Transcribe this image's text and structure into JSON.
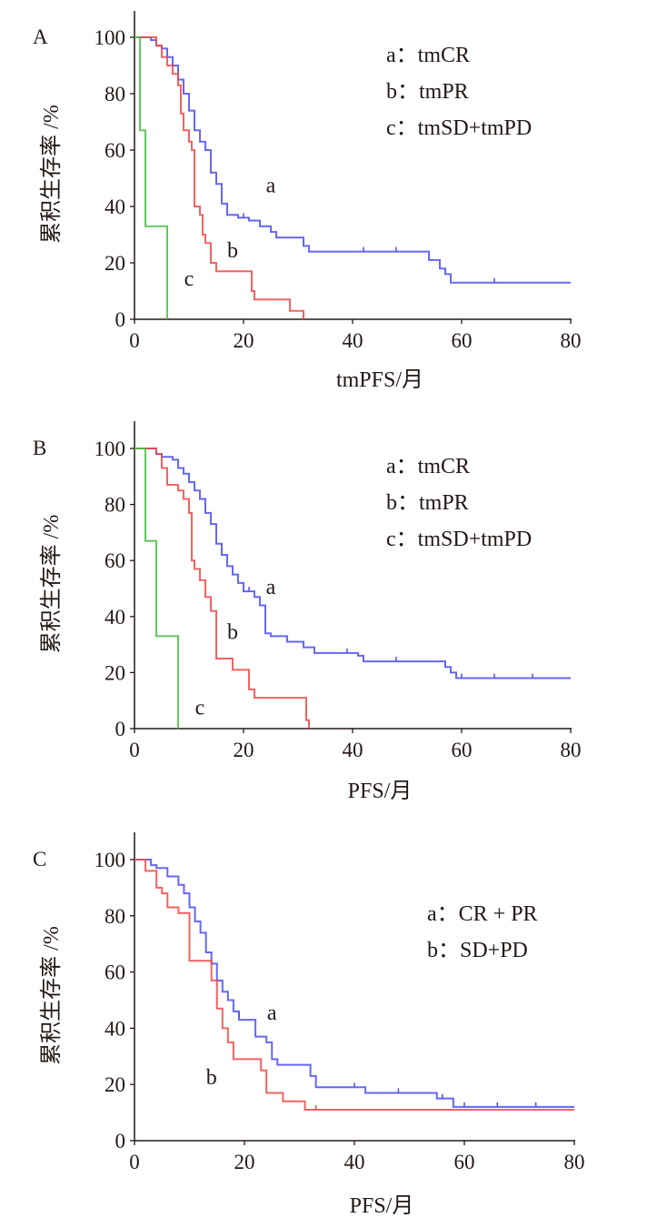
{
  "chart_data": [
    {
      "type": "line",
      "step": true,
      "panel_label": "A",
      "xlabel": "tmPFS/月",
      "ylabel": "累积生存率 /%",
      "xlim": [
        0,
        80
      ],
      "ylim": [
        0,
        100
      ],
      "xticks": [
        0,
        20,
        40,
        60,
        80
      ],
      "yticks": [
        0,
        20,
        40,
        60,
        80,
        100
      ],
      "grid": false,
      "legend_position": "top-right",
      "legend": [
        "a：tmCR",
        "b：tmPR",
        "c：tmSD+tmPD"
      ],
      "series": [
        {
          "name": "a",
          "color": "#4a4ef0",
          "points": [
            [
              0,
              100
            ],
            [
              3,
              99
            ],
            [
              4,
              97
            ],
            [
              5,
              96
            ],
            [
              6,
              93
            ],
            [
              7,
              90
            ],
            [
              8,
              85
            ],
            [
              9,
              80
            ],
            [
              10,
              74
            ],
            [
              11,
              67
            ],
            [
              12,
              63
            ],
            [
              13,
              60
            ],
            [
              14,
              52
            ],
            [
              15,
              48
            ],
            [
              16,
              41
            ],
            [
              17,
              37
            ],
            [
              19,
              36
            ],
            [
              21,
              35
            ],
            [
              23,
              33
            ],
            [
              25,
              31
            ],
            [
              26,
              29
            ],
            [
              31,
              26
            ],
            [
              32,
              24
            ],
            [
              53,
              24
            ],
            [
              54,
              21
            ],
            [
              56,
              18
            ],
            [
              57,
              16
            ],
            [
              58,
              13
            ],
            [
              80,
              13
            ]
          ],
          "censored": [
            [
              20,
              36
            ],
            [
              42,
              24
            ],
            [
              48,
              24
            ],
            [
              66,
              13
            ]
          ]
        },
        {
          "name": "b",
          "color": "#f04848",
          "points": [
            [
              0,
              100
            ],
            [
              4,
              97
            ],
            [
              5,
              93
            ],
            [
              6,
              90
            ],
            [
              7,
              87
            ],
            [
              8,
              83
            ],
            [
              8.5,
              73
            ],
            [
              9,
              67
            ],
            [
              10,
              63
            ],
            [
              10.5,
              60
            ],
            [
              11,
              40
            ],
            [
              12,
              37
            ],
            [
              12.5,
              30
            ],
            [
              13,
              27
            ],
            [
              14,
              20
            ],
            [
              15,
              17
            ],
            [
              21,
              17
            ],
            [
              21.5,
              10
            ],
            [
              22,
              7
            ],
            [
              28,
              7
            ],
            [
              28.5,
              3
            ],
            [
              31,
              0
            ]
          ],
          "censored": []
        },
        {
          "name": "c",
          "color": "#44c044",
          "points": [
            [
              0,
              100
            ],
            [
              1,
              67
            ],
            [
              2,
              33
            ],
            [
              6,
              0
            ]
          ],
          "censored": []
        }
      ],
      "curve_labels": [
        {
          "text": "a",
          "x": 25,
          "y": 45
        },
        {
          "text": "b",
          "x": 18,
          "y": 22
        },
        {
          "text": "c",
          "x": 10,
          "y": 12
        }
      ]
    },
    {
      "type": "line",
      "step": true,
      "panel_label": "B",
      "xlabel": "PFS/月",
      "ylabel": "累积生存率 /%",
      "xlim": [
        0,
        80
      ],
      "ylim": [
        0,
        100
      ],
      "xticks": [
        0,
        20,
        40,
        60,
        80
      ],
      "yticks": [
        0,
        20,
        40,
        60,
        80,
        100
      ],
      "grid": false,
      "legend_position": "top-right",
      "legend": [
        "a：tmCR",
        "b：tmPR",
        "c：tmSD+tmPD"
      ],
      "series": [
        {
          "name": "a",
          "color": "#4a4ef0",
          "points": [
            [
              0,
              100
            ],
            [
              4,
              98
            ],
            [
              5,
              97
            ],
            [
              7,
              96
            ],
            [
              8,
              93
            ],
            [
              9,
              91
            ],
            [
              10,
              88
            ],
            [
              11,
              85
            ],
            [
              12,
              82
            ],
            [
              13,
              77
            ],
            [
              14,
              73
            ],
            [
              15,
              66
            ],
            [
              16,
              62
            ],
            [
              17,
              58
            ],
            [
              18,
              55
            ],
            [
              19,
              52
            ],
            [
              20,
              49
            ],
            [
              22,
              47
            ],
            [
              23,
              44
            ],
            [
              24,
              34
            ],
            [
              25,
              33
            ],
            [
              28,
              31
            ],
            [
              31,
              29
            ],
            [
              33,
              27
            ],
            [
              41,
              26
            ],
            [
              42,
              24
            ],
            [
              56,
              24
            ],
            [
              57,
              22
            ],
            [
              58,
              20
            ],
            [
              59,
              18
            ],
            [
              80,
              18
            ]
          ],
          "censored": [
            [
              21,
              49
            ],
            [
              39,
              27
            ],
            [
              48,
              24
            ],
            [
              60,
              18
            ],
            [
              66,
              18
            ],
            [
              73,
              18
            ]
          ]
        },
        {
          "name": "b",
          "color": "#f04848",
          "points": [
            [
              0,
              100
            ],
            [
              4,
              98
            ],
            [
              5,
              93
            ],
            [
              6,
              87
            ],
            [
              8,
              85
            ],
            [
              9,
              82
            ],
            [
              10,
              77
            ],
            [
              10.5,
              60
            ],
            [
              11,
              57
            ],
            [
              12,
              53
            ],
            [
              13,
              47
            ],
            [
              14,
              42
            ],
            [
              15,
              25
            ],
            [
              18,
              21
            ],
            [
              21,
              14
            ],
            [
              22,
              11
            ],
            [
              31,
              11
            ],
            [
              31.5,
              3
            ],
            [
              32,
              0
            ]
          ],
          "censored": []
        },
        {
          "name": "c",
          "color": "#44c044",
          "points": [
            [
              0,
              100
            ],
            [
              2,
              67
            ],
            [
              4,
              33
            ],
            [
              8,
              0
            ]
          ],
          "censored": []
        }
      ],
      "curve_labels": [
        {
          "text": "a",
          "x": 25,
          "y": 48
        },
        {
          "text": "b",
          "x": 18,
          "y": 32
        },
        {
          "text": "c",
          "x": 12,
          "y": 5
        }
      ]
    },
    {
      "type": "line",
      "step": true,
      "panel_label": "C",
      "xlabel": "PFS/月",
      "ylabel": "累积生存率 /%",
      "xlim": [
        0,
        80
      ],
      "ylim": [
        0,
        100
      ],
      "xticks": [
        0,
        20,
        40,
        60,
        80
      ],
      "yticks": [
        0,
        20,
        40,
        60,
        80,
        100
      ],
      "grid": false,
      "legend_position": "right",
      "legend": [
        "a：CR + PR",
        "b：SD+PD"
      ],
      "series": [
        {
          "name": "a",
          "color": "#4a4ef0",
          "points": [
            [
              0,
              100
            ],
            [
              3,
              98
            ],
            [
              4,
              97
            ],
            [
              6,
              94
            ],
            [
              8,
              91
            ],
            [
              9,
              88
            ],
            [
              10,
              83
            ],
            [
              11,
              78
            ],
            [
              12,
              74
            ],
            [
              13,
              67
            ],
            [
              14,
              63
            ],
            [
              15,
              57
            ],
            [
              16,
              53
            ],
            [
              17,
              50
            ],
            [
              18,
              46
            ],
            [
              19,
              43
            ],
            [
              21,
              43
            ],
            [
              22,
              37
            ],
            [
              24,
              35
            ],
            [
              25,
              29
            ],
            [
              26,
              27
            ],
            [
              31,
              27
            ],
            [
              32,
              23
            ],
            [
              33,
              19
            ],
            [
              41,
              19
            ],
            [
              42,
              17
            ],
            [
              54,
              17
            ],
            [
              55,
              15
            ],
            [
              58,
              12
            ],
            [
              80,
              12
            ]
          ],
          "censored": [
            [
              19,
              44
            ],
            [
              40,
              19
            ],
            [
              48,
              17
            ],
            [
              56,
              15
            ],
            [
              60,
              12
            ],
            [
              66,
              12
            ],
            [
              73,
              12
            ]
          ]
        },
        {
          "name": "b",
          "color": "#f04848",
          "points": [
            [
              0,
              100
            ],
            [
              2,
              96
            ],
            [
              4,
              90
            ],
            [
              5,
              88
            ],
            [
              6,
              83
            ],
            [
              8,
              81
            ],
            [
              10,
              64
            ],
            [
              13,
              64
            ],
            [
              14,
              57
            ],
            [
              15,
              47
            ],
            [
              16,
              40
            ],
            [
              17,
              35
            ],
            [
              18,
              29
            ],
            [
              22,
              29
            ],
            [
              23,
              25
            ],
            [
              24,
              17
            ],
            [
              27,
              14
            ],
            [
              31,
              11
            ],
            [
              80,
              11
            ]
          ],
          "censored": [
            [
              33,
              11
            ]
          ]
        }
      ],
      "curve_labels": [
        {
          "text": "a",
          "x": 25,
          "y": 43
        },
        {
          "text": "b",
          "x": 14,
          "y": 20
        }
      ]
    }
  ]
}
